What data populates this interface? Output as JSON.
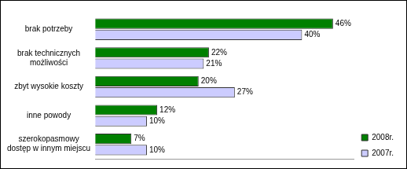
{
  "chart_data": {
    "type": "bar",
    "orientation": "horizontal",
    "categories": [
      [
        "brak potrzeby"
      ],
      [
        "brak technicznych",
        "możliwości"
      ],
      [
        "zbyt wysokie koszty"
      ],
      [
        "inne powody"
      ],
      [
        "szerokopasmowy",
        "dostęp w innym miejscu"
      ]
    ],
    "series": [
      {
        "name": "2008r.",
        "color": "#008000",
        "values": [
          46,
          22,
          20,
          12,
          7
        ],
        "value_labels": [
          "46%",
          "22%",
          "20%",
          "12%",
          "7%"
        ]
      },
      {
        "name": "2007r.",
        "color": "#ccccff",
        "values": [
          40,
          21,
          27,
          10,
          10
        ],
        "value_labels": [
          "40%",
          "21%",
          "27%",
          "10%",
          "10%"
        ]
      }
    ],
    "xlim": [
      0,
      50
    ],
    "grid": false,
    "tick_labels": "y",
    "data_labels": true,
    "legend": "lower right"
  }
}
